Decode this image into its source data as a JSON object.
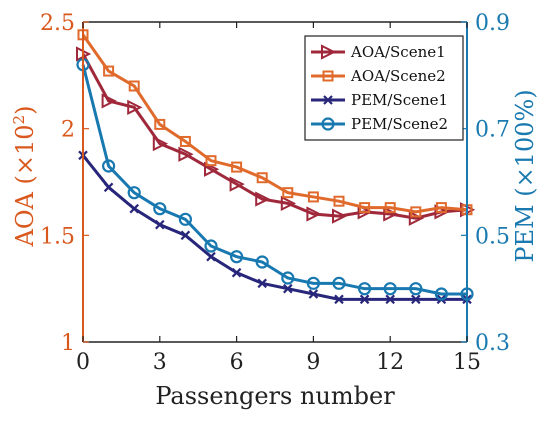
{
  "chart_data": {
    "type": "line",
    "xlabel": "Passengers number",
    "ylabel_left": "AOA (×10",
    "ylabel_left_exp": "2",
    "ylabel_left_close": ")",
    "ylabel_right": "PEM (×100%)",
    "xlim": [
      0,
      15
    ],
    "ylim_left": [
      1,
      2.5
    ],
    "ylim_right": [
      0.3,
      0.9
    ],
    "x_ticks": [
      0,
      3,
      6,
      9,
      12,
      15
    ],
    "y_left_ticks": [
      1,
      1.5,
      2,
      2.5
    ],
    "y_left_tick_labels": [
      "1",
      "1.5",
      "2",
      "2.5"
    ],
    "y_right_ticks": [
      0.3,
      0.5,
      0.7,
      0.9
    ],
    "y_right_tick_labels": [
      "0.3",
      "0.5",
      "0.7",
      "0.9"
    ],
    "grid": false,
    "legend_position": "top-right",
    "x": [
      0,
      1,
      2,
      3,
      4,
      5,
      6,
      7,
      8,
      9,
      10,
      11,
      12,
      13,
      14,
      15
    ],
    "series": [
      {
        "name": "AOA/Scene1",
        "axis": "left",
        "color": "#a0283b",
        "marker": "triangle-right",
        "values": [
          2.35,
          2.13,
          2.1,
          1.93,
          1.88,
          1.81,
          1.74,
          1.67,
          1.65,
          1.6,
          1.59,
          1.61,
          1.6,
          1.58,
          1.61,
          1.62
        ]
      },
      {
        "name": "AOA/Scene2",
        "axis": "left",
        "color": "#e06a2c",
        "marker": "square",
        "values": [
          2.44,
          2.27,
          2.2,
          2.02,
          1.94,
          1.85,
          1.82,
          1.77,
          1.7,
          1.68,
          1.66,
          1.63,
          1.63,
          1.61,
          1.63,
          1.62
        ]
      },
      {
        "name": "PEM/Scene1",
        "axis": "right",
        "color": "#27267a",
        "marker": "x",
        "values": [
          0.65,
          0.59,
          0.55,
          0.52,
          0.5,
          0.46,
          0.43,
          0.41,
          0.4,
          0.39,
          0.38,
          0.38,
          0.38,
          0.38,
          0.38,
          0.38
        ]
      },
      {
        "name": "PEM/Scene2",
        "axis": "right",
        "color": "#1878b0",
        "marker": "circle",
        "values": [
          0.82,
          0.63,
          0.58,
          0.55,
          0.53,
          0.48,
          0.46,
          0.45,
          0.42,
          0.41,
          0.41,
          0.4,
          0.4,
          0.4,
          0.39,
          0.39
        ]
      }
    ]
  }
}
